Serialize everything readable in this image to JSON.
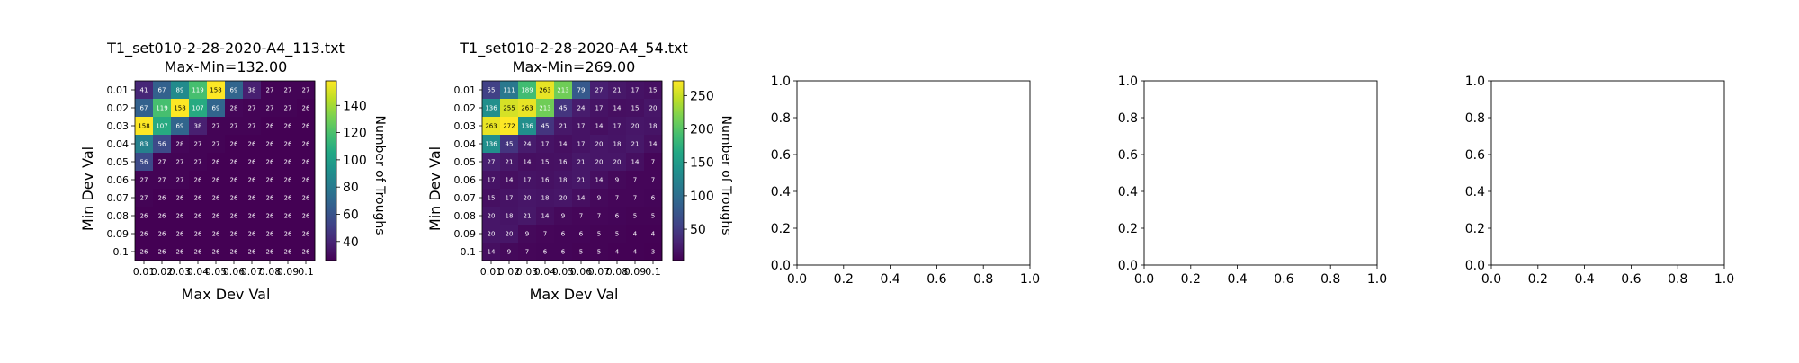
{
  "chart_data": [
    {
      "type": "heatmap",
      "title": "T1_set010-2-28-2020-A4_113.txt",
      "subtitle": "Max-Min=132.00",
      "xlabel": "Max Dev Val",
      "ylabel": "Min Dev Val",
      "x_categories": [
        "0.01",
        "0.02",
        "0.03",
        "0.04",
        "0.05",
        "0.06",
        "0.07",
        "0.08",
        "0.09",
        "0.1"
      ],
      "y_categories": [
        "0.01",
        "0.02",
        "0.03",
        "0.04",
        "0.05",
        "0.06",
        "0.07",
        "0.08",
        "0.09",
        "0.1"
      ],
      "values": [
        [
          41,
          67,
          89,
          119,
          158,
          69,
          38,
          27,
          27,
          27
        ],
        [
          67,
          119,
          158,
          107,
          69,
          28,
          27,
          27,
          27,
          26
        ],
        [
          158,
          107,
          69,
          38,
          27,
          27,
          27,
          26,
          26,
          26
        ],
        [
          83,
          56,
          28,
          27,
          27,
          26,
          26,
          26,
          26,
          26
        ],
        [
          56,
          27,
          27,
          27,
          26,
          26,
          26,
          26,
          26,
          26
        ],
        [
          27,
          27,
          27,
          26,
          26,
          26,
          26,
          26,
          26,
          26
        ],
        [
          27,
          26,
          26,
          26,
          26,
          26,
          26,
          26,
          26,
          26
        ],
        [
          26,
          26,
          26,
          26,
          26,
          26,
          26,
          26,
          26,
          26
        ],
        [
          26,
          26,
          26,
          26,
          26,
          26,
          26,
          26,
          26,
          26
        ],
        [
          26,
          26,
          26,
          26,
          26,
          26,
          26,
          26,
          26,
          26
        ]
      ],
      "colorbar": {
        "label": "Number of Troughs",
        "vmin": 26,
        "vmax": 158,
        "ticks": [
          40,
          60,
          80,
          100,
          120,
          140
        ]
      },
      "colormap": "viridis"
    },
    {
      "type": "heatmap",
      "title": "T1_set010-2-28-2020-A4_54.txt",
      "subtitle": "Max-Min=269.00",
      "xlabel": "Max Dev Val",
      "ylabel": "Min Dev Val",
      "x_categories": [
        "0.01",
        "0.02",
        "0.03",
        "0.04",
        "0.05",
        "0.06",
        "0.07",
        "0.08",
        "0.09",
        "0.1"
      ],
      "y_categories": [
        "0.01",
        "0.02",
        "0.03",
        "0.04",
        "0.05",
        "0.06",
        "0.07",
        "0.08",
        "0.09",
        "0.1"
      ],
      "values": [
        [
          55,
          111,
          189,
          263,
          213,
          79,
          27,
          21,
          17,
          15
        ],
        [
          136,
          255,
          263,
          213,
          45,
          24,
          17,
          14,
          15,
          20
        ],
        [
          263,
          272,
          136,
          45,
          21,
          17,
          14,
          17,
          20,
          18
        ],
        [
          136,
          45,
          24,
          17,
          14,
          17,
          20,
          18,
          21,
          14
        ],
        [
          27,
          21,
          14,
          15,
          16,
          21,
          20,
          20,
          14,
          7
        ],
        [
          17,
          14,
          17,
          16,
          18,
          21,
          14,
          9,
          7,
          7
        ],
        [
          15,
          17,
          20,
          18,
          20,
          14,
          9,
          7,
          7,
          6
        ],
        [
          20,
          18,
          21,
          14,
          9,
          7,
          7,
          6,
          5,
          5
        ],
        [
          20,
          20,
          9,
          7,
          6,
          6,
          5,
          5,
          4,
          4
        ],
        [
          14,
          9,
          7,
          6,
          6,
          5,
          5,
          4,
          4,
          3
        ]
      ],
      "colorbar": {
        "label": "Number of Troughs",
        "vmin": 3,
        "vmax": 272,
        "ticks": [
          50,
          100,
          150,
          200,
          250
        ]
      },
      "colormap": "viridis"
    },
    {
      "type": "line",
      "x": [],
      "y": [],
      "xlim": [
        0,
        1
      ],
      "ylim": [
        0,
        1
      ],
      "xticks": [
        "0.0",
        "0.2",
        "0.4",
        "0.6",
        "0.8",
        "1.0"
      ],
      "yticks": [
        "0.0",
        "0.2",
        "0.4",
        "0.6",
        "0.8",
        "1.0"
      ]
    },
    {
      "type": "line",
      "x": [],
      "y": [],
      "xlim": [
        0,
        1
      ],
      "ylim": [
        0,
        1
      ],
      "xticks": [
        "0.0",
        "0.2",
        "0.4",
        "0.6",
        "0.8",
        "1.0"
      ],
      "yticks": [
        "0.0",
        "0.2",
        "0.4",
        "0.6",
        "0.8",
        "1.0"
      ]
    },
    {
      "type": "line",
      "x": [],
      "y": [],
      "xlim": [
        0,
        1
      ],
      "ylim": [
        0,
        1
      ],
      "xticks": [
        "0.0",
        "0.2",
        "0.4",
        "0.6",
        "0.8",
        "1.0"
      ],
      "yticks": [
        "0.0",
        "0.2",
        "0.4",
        "0.6",
        "0.8",
        "1.0"
      ]
    }
  ]
}
